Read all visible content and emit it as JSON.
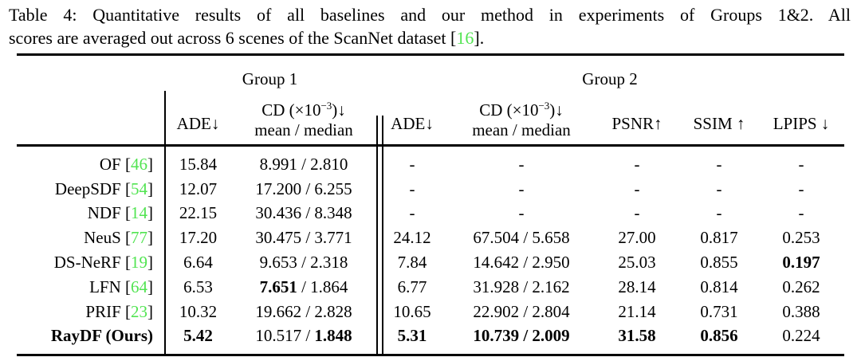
{
  "caption": {
    "line1": "Table 4: Quantitative results of all baselines and our method in experiments of Groups 1&2. All",
    "line2_prefix": "scores are averaged out across 6 scenes of the ScanNet dataset [",
    "line2_cite": "16",
    "line2_suffix": "]."
  },
  "colors": {
    "citation_green": "#52e452",
    "text": "#000000",
    "background": "#ffffff"
  },
  "table": {
    "group_headers": [
      "Group 1",
      "Group 2"
    ],
    "headers": {
      "ade": "ADE↓",
      "cd_base": "CD (×10",
      "cd_sup": "−3",
      "cd_close": ")↓",
      "cd_line2": "mean / median",
      "psnr": "PSNR↑",
      "ssim": "SSIM ↑",
      "lpips": "LPIPS ↓"
    },
    "rows": [
      {
        "label": "OF",
        "cite": "46",
        "bold_label": false,
        "cells": [
          [
            {
              "t": "15.84"
            }
          ],
          [
            {
              "t": "8.991 / 2.810"
            }
          ],
          [
            {
              "t": "-"
            }
          ],
          [
            {
              "t": "-"
            }
          ],
          [
            {
              "t": "-"
            }
          ],
          [
            {
              "t": "-"
            }
          ],
          [
            {
              "t": "-"
            }
          ]
        ]
      },
      {
        "label": "DeepSDF",
        "cite": "54",
        "bold_label": false,
        "cells": [
          [
            {
              "t": "12.07"
            }
          ],
          [
            {
              "t": "17.200 / 6.255"
            }
          ],
          [
            {
              "t": "-"
            }
          ],
          [
            {
              "t": "-"
            }
          ],
          [
            {
              "t": "-"
            }
          ],
          [
            {
              "t": "-"
            }
          ],
          [
            {
              "t": "-"
            }
          ]
        ]
      },
      {
        "label": "NDF",
        "cite": "14",
        "bold_label": false,
        "cells": [
          [
            {
              "t": "22.15"
            }
          ],
          [
            {
              "t": "30.436 / 8.348"
            }
          ],
          [
            {
              "t": "-"
            }
          ],
          [
            {
              "t": "-"
            }
          ],
          [
            {
              "t": "-"
            }
          ],
          [
            {
              "t": "-"
            }
          ],
          [
            {
              "t": "-"
            }
          ]
        ]
      },
      {
        "label": "NeuS",
        "cite": "77",
        "bold_label": false,
        "cells": [
          [
            {
              "t": "17.20"
            }
          ],
          [
            {
              "t": "30.475 / 3.771"
            }
          ],
          [
            {
              "t": "24.12"
            }
          ],
          [
            {
              "t": "67.504 / 5.658"
            }
          ],
          [
            {
              "t": "27.00"
            }
          ],
          [
            {
              "t": "0.817"
            }
          ],
          [
            {
              "t": "0.253"
            }
          ]
        ]
      },
      {
        "label": "DS-NeRF",
        "cite": "19",
        "bold_label": false,
        "cells": [
          [
            {
              "t": "6.64"
            }
          ],
          [
            {
              "t": "9.653 / 2.318"
            }
          ],
          [
            {
              "t": "7.84"
            }
          ],
          [
            {
              "t": "14.642 / 2.950"
            }
          ],
          [
            {
              "t": "25.03"
            }
          ],
          [
            {
              "t": "0.855"
            }
          ],
          [
            {
              "t": "0.197",
              "b": true
            }
          ]
        ]
      },
      {
        "label": "LFN",
        "cite": "64",
        "bold_label": false,
        "cells": [
          [
            {
              "t": "6.53"
            }
          ],
          [
            {
              "t": "7.651",
              "b": true
            },
            {
              "t": " / 1.864"
            }
          ],
          [
            {
              "t": "6.77"
            }
          ],
          [
            {
              "t": "31.928 / 2.162"
            }
          ],
          [
            {
              "t": "28.14"
            }
          ],
          [
            {
              "t": "0.814"
            }
          ],
          [
            {
              "t": "0.262"
            }
          ]
        ]
      },
      {
        "label": "PRIF",
        "cite": "23",
        "bold_label": false,
        "cells": [
          [
            {
              "t": "10.32"
            }
          ],
          [
            {
              "t": "19.662 / 2.828"
            }
          ],
          [
            {
              "t": "10.65"
            }
          ],
          [
            {
              "t": "22.902 / 2.804"
            }
          ],
          [
            {
              "t": "21.14"
            }
          ],
          [
            {
              "t": "0.731"
            }
          ],
          [
            {
              "t": "0.388"
            }
          ]
        ]
      },
      {
        "label": "RayDF (Ours)",
        "cite": null,
        "bold_label": true,
        "cells": [
          [
            {
              "t": "5.42",
              "b": true
            }
          ],
          [
            {
              "t": "10.517 / "
            },
            {
              "t": "1.848",
              "b": true
            }
          ],
          [
            {
              "t": "5.31",
              "b": true
            }
          ],
          [
            {
              "t": "10.739 / 2.009",
              "b": true
            }
          ],
          [
            {
              "t": "31.58",
              "b": true
            }
          ],
          [
            {
              "t": "0.856",
              "b": true
            }
          ],
          [
            {
              "t": "0.224"
            }
          ]
        ]
      }
    ]
  }
}
